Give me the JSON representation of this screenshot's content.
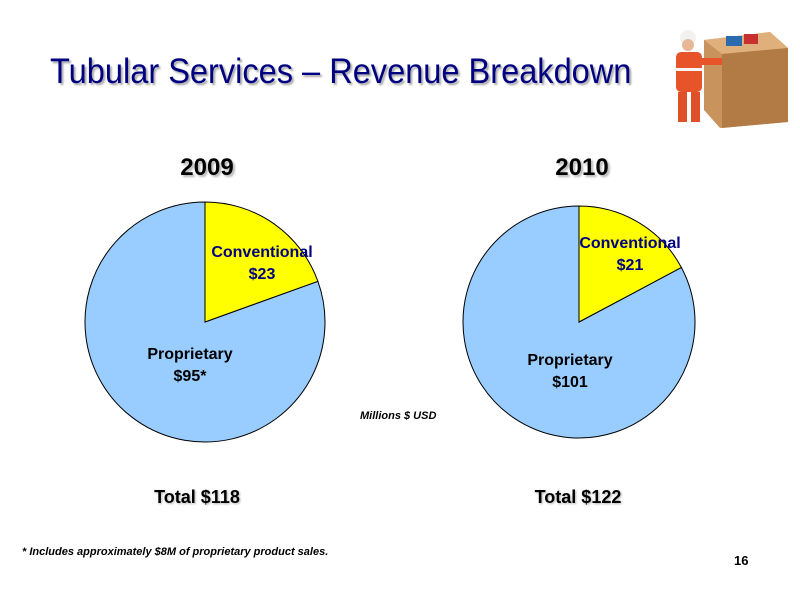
{
  "slide": {
    "title": "Tubular Services – Revenue Breakdown",
    "units_note": "Millions $ USD",
    "footnote": "* Includes approximately $8M of proprietary product sales.",
    "page_number": "16"
  },
  "colors": {
    "title": "#000080",
    "proprietary": "#99ccff",
    "conventional": "#ffff00",
    "proprietary_label": "#000000",
    "conventional_label": "#000080"
  },
  "chart_data": [
    {
      "type": "pie",
      "title": "2009",
      "slices": [
        {
          "name": "Conventional",
          "label": "$23",
          "value": 23
        },
        {
          "name": "Proprietary",
          "label": "$95*",
          "value": 95
        }
      ],
      "total_label": "Total $118"
    },
    {
      "type": "pie",
      "title": "2010",
      "slices": [
        {
          "name": "Conventional",
          "label": "$21",
          "value": 21
        },
        {
          "name": "Proprietary",
          "label": "$101",
          "value": 101
        }
      ],
      "total_label": "Total $122"
    }
  ]
}
